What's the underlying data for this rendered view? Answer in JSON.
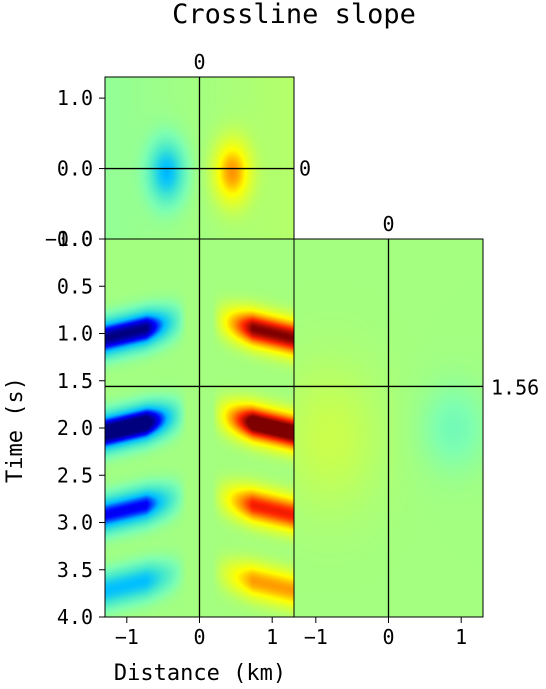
{
  "chart_data": {
    "type": "heatmap",
    "title": "Crossline slope",
    "xlabel": "Distance (km)",
    "ylabel": "Time (s)",
    "colormap": [
      "#00007f",
      "#0000ff",
      "#00bfff",
      "#3fe6d0",
      "#7fffb0",
      "#c8ff50",
      "#ffff00",
      "#ff9a00",
      "#ff2000",
      "#7f0000"
    ],
    "panels": {
      "top": {
        "x_range": [
          -1.3,
          1.3
        ],
        "y_range": [
          -1.0,
          1.3
        ],
        "ytick_values": [
          1.0,
          0.0,
          -1.0
        ],
        "ytick_labels": [
          "1.0",
          "0.0",
          "−1.0"
        ],
        "crosshair_x": 0,
        "crosshair_y": 0,
        "crosshair_x_label": "0",
        "crosshair_y_label": "0"
      },
      "main": {
        "x_range": [
          -1.3,
          1.3
        ],
        "y_range": [
          0.0,
          4.0
        ],
        "ytick_values": [
          0.0,
          0.5,
          1.0,
          1.5,
          2.0,
          2.5,
          3.0,
          3.5,
          4.0
        ],
        "ytick_labels": [
          "0.0",
          "0.5",
          "1.0",
          "1.5",
          "2.0",
          "2.5",
          "3.0",
          "3.5",
          "4.0"
        ],
        "xtick_values": [
          -1,
          0,
          1
        ],
        "xtick_labels": [
          "−1",
          "0",
          "1"
        ],
        "crosshair_x": 0,
        "crosshair_time": 1.56
      },
      "side": {
        "x_range": [
          -1.3,
          1.3
        ],
        "y_range": [
          0.0,
          4.0
        ],
        "xtick_values": [
          -1,
          0,
          1
        ],
        "xtick_labels": [
          "−1",
          "0",
          "1"
        ],
        "crosshair_x": 0,
        "crosshair_x_label": "0",
        "crosshair_time_label": "1.56"
      }
    },
    "events": [
      {
        "time": 0.95,
        "amplitude": 1.0
      },
      {
        "time": 1.95,
        "amplitude": 1.15
      },
      {
        "time": 2.82,
        "amplitude": 0.8
      },
      {
        "time": 3.62,
        "amplitude": 0.55
      }
    ]
  }
}
